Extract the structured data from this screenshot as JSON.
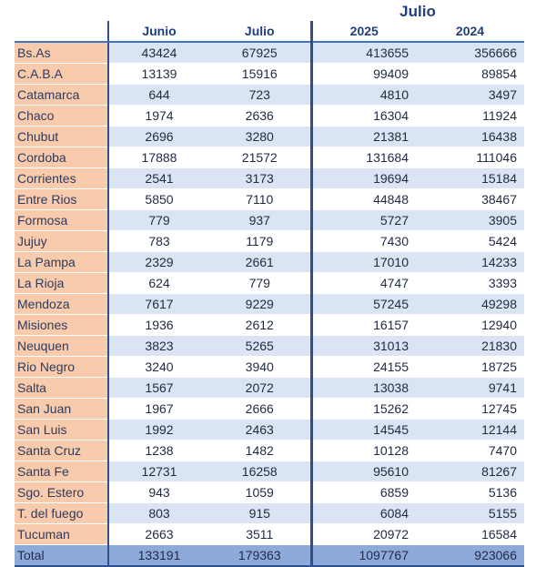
{
  "header": {
    "super_title": "Julio",
    "columns": [
      "Junio",
      "Julio",
      "2025",
      "2024"
    ]
  },
  "rows": [
    {
      "name": "Bs.As",
      "v": [
        "43424",
        "67925",
        "413655",
        "356666"
      ]
    },
    {
      "name": "C.A.B.A",
      "v": [
        "13139",
        "15916",
        "99409",
        "89854"
      ]
    },
    {
      "name": "Catamarca",
      "v": [
        "644",
        "723",
        "4810",
        "3497"
      ]
    },
    {
      "name": "Chaco",
      "v": [
        "1974",
        "2636",
        "16304",
        "11924"
      ]
    },
    {
      "name": "Chubut",
      "v": [
        "2696",
        "3280",
        "21381",
        "16438"
      ]
    },
    {
      "name": "Cordoba",
      "v": [
        "17888",
        "21572",
        "131684",
        "111046"
      ]
    },
    {
      "name": "Corrientes",
      "v": [
        "2541",
        "3173",
        "19694",
        "15184"
      ]
    },
    {
      "name": "Entre Rios",
      "v": [
        "5850",
        "7110",
        "44848",
        "38467"
      ]
    },
    {
      "name": "Formosa",
      "v": [
        "779",
        "937",
        "5727",
        "3905"
      ]
    },
    {
      "name": "Jujuy",
      "v": [
        "783",
        "1179",
        "7430",
        "5424"
      ]
    },
    {
      "name": "La Pampa",
      "v": [
        "2329",
        "2661",
        "17010",
        "14233"
      ]
    },
    {
      "name": "La Rioja",
      "v": [
        "624",
        "779",
        "4747",
        "3393"
      ]
    },
    {
      "name": "Mendoza",
      "v": [
        "7617",
        "9229",
        "57245",
        "49298"
      ]
    },
    {
      "name": "Misiones",
      "v": [
        "1936",
        "2612",
        "16157",
        "12940"
      ]
    },
    {
      "name": "Neuquen",
      "v": [
        "3823",
        "5265",
        "31013",
        "21830"
      ]
    },
    {
      "name": "Rio Negro",
      "v": [
        "3240",
        "3940",
        "24155",
        "18725"
      ]
    },
    {
      "name": "Salta",
      "v": [
        "1567",
        "2072",
        "13038",
        "9741"
      ]
    },
    {
      "name": "San Juan",
      "v": [
        "1967",
        "2666",
        "15262",
        "12745"
      ]
    },
    {
      "name": "San Luis",
      "v": [
        "1992",
        "2463",
        "14545",
        "12144"
      ]
    },
    {
      "name": "Santa Cruz",
      "v": [
        "1238",
        "1482",
        "10128",
        "7470"
      ]
    },
    {
      "name": "Santa Fe",
      "v": [
        "12731",
        "16258",
        "95610",
        "81267"
      ]
    },
    {
      "name": "Sgo. Estero",
      "v": [
        "943",
        "1059",
        "6859",
        "5136"
      ]
    },
    {
      "name": "T. del fuego",
      "v": [
        "803",
        "915",
        "6084",
        "5155"
      ]
    },
    {
      "name": "Tucuman",
      "v": [
        "2663",
        "3511",
        "20972",
        "16584"
      ]
    }
  ],
  "total": {
    "name": "Total",
    "v": [
      "133191",
      "179363",
      "1097767",
      "923066"
    ]
  },
  "colors": {
    "province_fill": "#f8cbad",
    "band_fill": "#dbe4f2",
    "total_fill": "#8eaadb",
    "header_text": "#1f3e7a",
    "rule": "#4472c4"
  }
}
